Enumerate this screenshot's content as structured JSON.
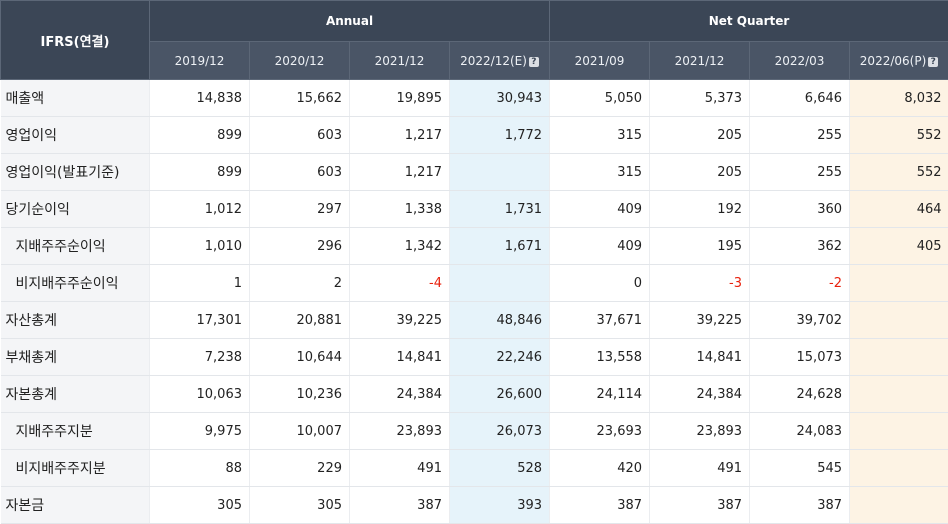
{
  "header": {
    "corner": "IFRS(연결)",
    "group_annual": "Annual",
    "group_quarter": "Net Quarter",
    "hint_glyph": "?",
    "periods": [
      "2019/12",
      "2020/12",
      "2021/12",
      "2022/12(E)",
      "2021/09",
      "2021/12",
      "2022/03",
      "2022/06(P)"
    ]
  },
  "colors": {
    "header_bg": "#3b4656",
    "estimate_bg": "#e6f3fa",
    "provisional_bg": "#fdf3e4",
    "negative_text": "#e8210d"
  },
  "rows": [
    {
      "label": "매출액",
      "sub": false,
      "values": [
        "14,838",
        "15,662",
        "19,895",
        "30,943",
        "5,050",
        "5,373",
        "6,646",
        "8,032"
      ]
    },
    {
      "label": "영업이익",
      "sub": false,
      "values": [
        "899",
        "603",
        "1,217",
        "1,772",
        "315",
        "205",
        "255",
        "552"
      ]
    },
    {
      "label": "영업이익(발표기준)",
      "sub": false,
      "values": [
        "899",
        "603",
        "1,217",
        "",
        "315",
        "205",
        "255",
        "552"
      ]
    },
    {
      "label": "당기순이익",
      "sub": false,
      "values": [
        "1,012",
        "297",
        "1,338",
        "1,731",
        "409",
        "192",
        "360",
        "464"
      ]
    },
    {
      "label": "지배주주순이익",
      "sub": true,
      "values": [
        "1,010",
        "296",
        "1,342",
        "1,671",
        "409",
        "195",
        "362",
        "405"
      ]
    },
    {
      "label": "비지배주주순이익",
      "sub": true,
      "values": [
        "1",
        "2",
        "-4",
        "",
        "0",
        "-3",
        "-2",
        ""
      ]
    },
    {
      "label": "자산총계",
      "sub": false,
      "values": [
        "17,301",
        "20,881",
        "39,225",
        "48,846",
        "37,671",
        "39,225",
        "39,702",
        ""
      ]
    },
    {
      "label": "부채총계",
      "sub": false,
      "values": [
        "7,238",
        "10,644",
        "14,841",
        "22,246",
        "13,558",
        "14,841",
        "15,073",
        ""
      ]
    },
    {
      "label": "자본총계",
      "sub": false,
      "values": [
        "10,063",
        "10,236",
        "24,384",
        "26,600",
        "24,114",
        "24,384",
        "24,628",
        ""
      ]
    },
    {
      "label": "지배주주지분",
      "sub": true,
      "values": [
        "9,975",
        "10,007",
        "23,893",
        "26,073",
        "23,693",
        "23,893",
        "24,083",
        ""
      ]
    },
    {
      "label": "비지배주주지분",
      "sub": true,
      "values": [
        "88",
        "229",
        "491",
        "528",
        "420",
        "491",
        "545",
        ""
      ]
    },
    {
      "label": "자본금",
      "sub": false,
      "values": [
        "305",
        "305",
        "387",
        "393",
        "387",
        "387",
        "387",
        ""
      ]
    }
  ]
}
